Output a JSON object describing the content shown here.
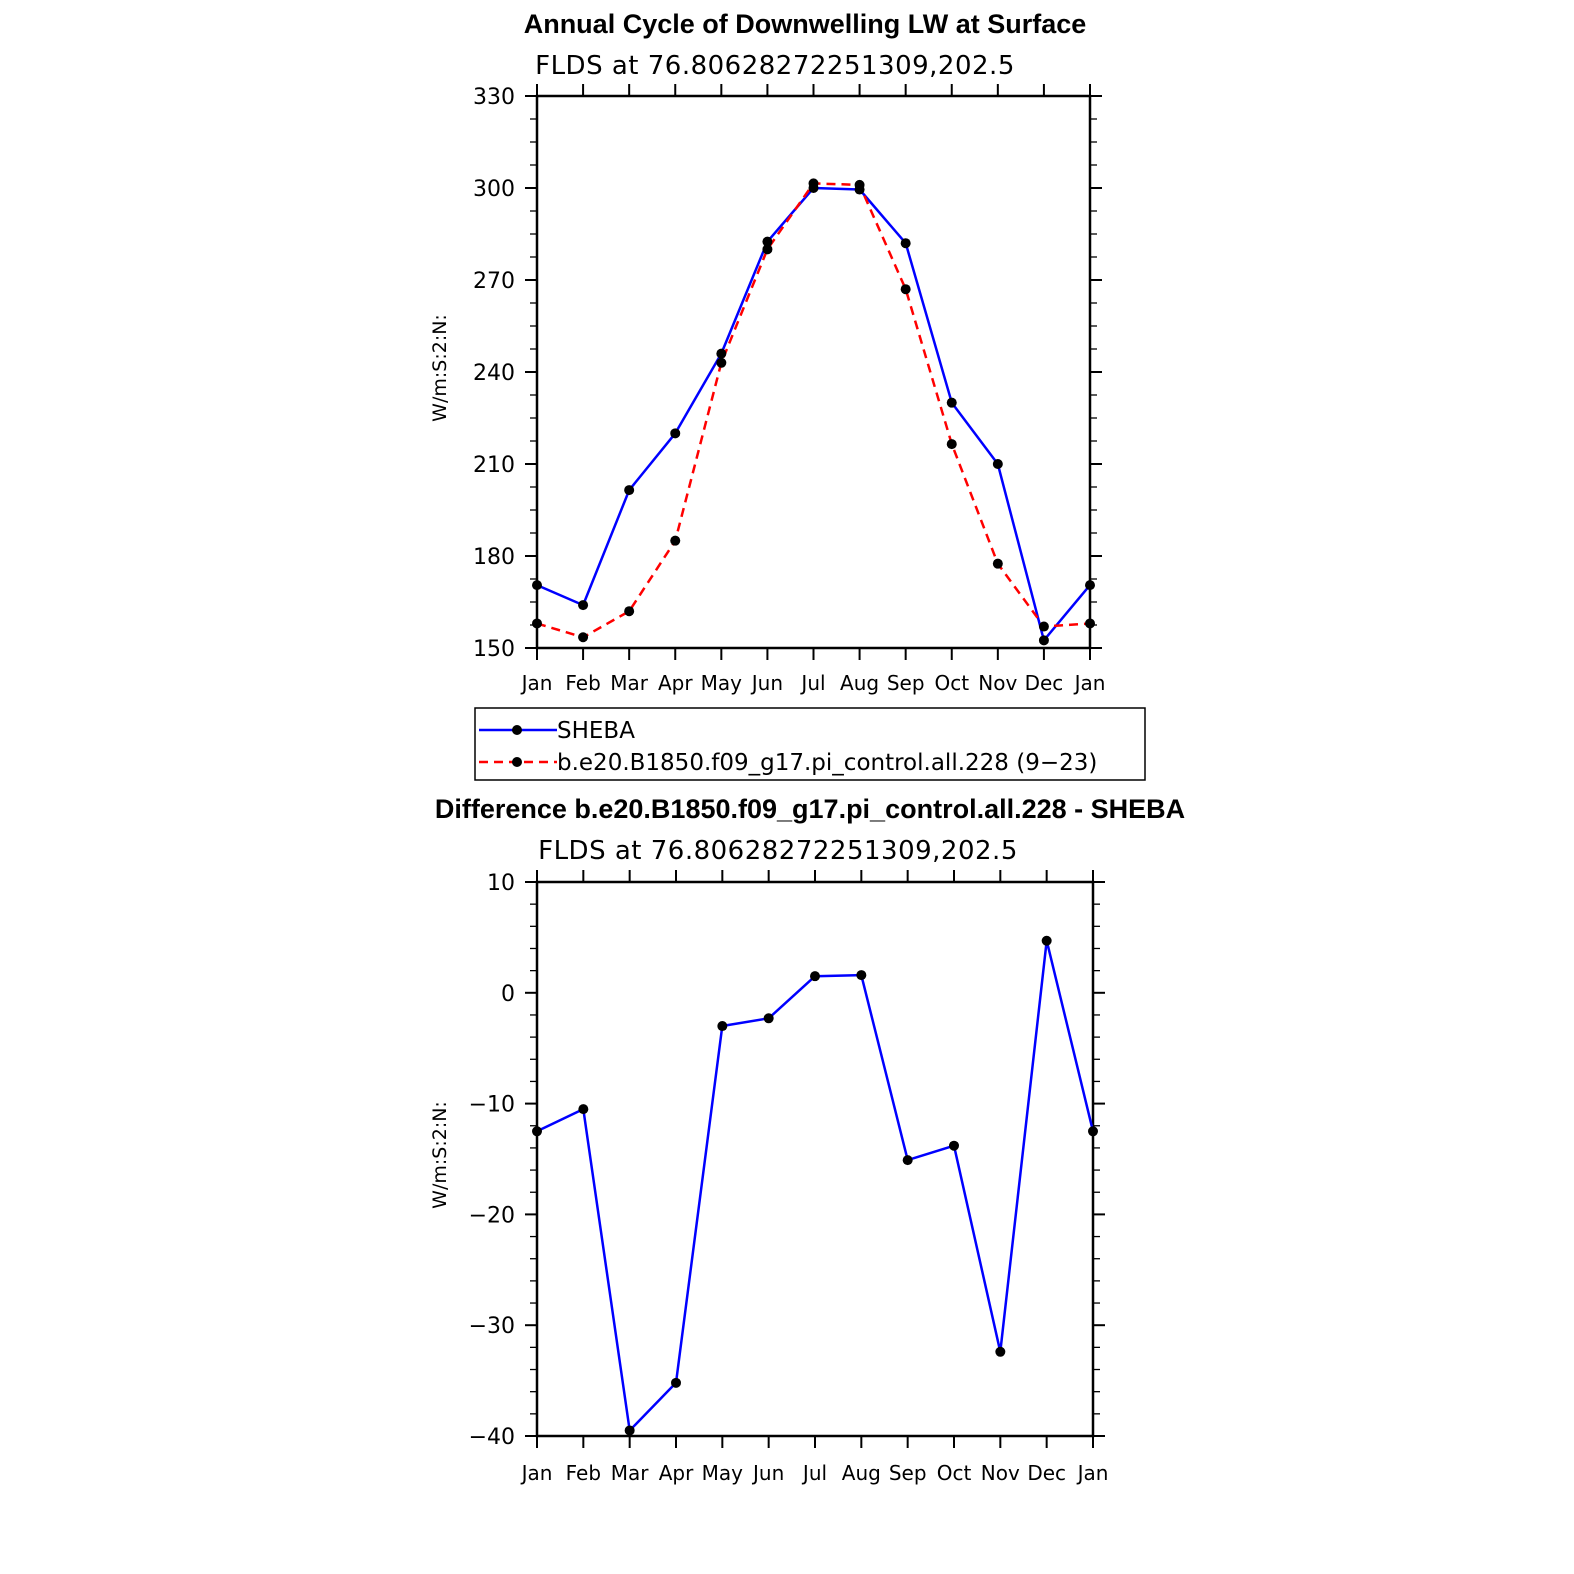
{
  "chart_data": [
    {
      "type": "line",
      "title": "Annual Cycle of Downwelling LW at Surface",
      "subtitle": "FLDS at 76.80628272251309,202.5",
      "xlabel": "",
      "ylabel": "W/m:S:2:N:",
      "categories": [
        "Jan",
        "Feb",
        "Mar",
        "Apr",
        "May",
        "Jun",
        "Jul",
        "Aug",
        "Sep",
        "Oct",
        "Nov",
        "Dec",
        "Jan"
      ],
      "ylim": [
        150,
        330
      ],
      "yticks": [
        150,
        180,
        210,
        240,
        270,
        300,
        330
      ],
      "grid": false,
      "legend_position": "below",
      "series": [
        {
          "name": "SHEBA",
          "color": "#0000ff",
          "dash": "solid",
          "values": [
            170.5,
            164,
            201.5,
            220,
            246,
            282.5,
            300,
            299.5,
            282,
            230,
            210,
            152.5,
            170.5
          ]
        },
        {
          "name": "b.e20.B1850.f09_g17.pi_control.all.228 (9−23)",
          "color": "#ff0000",
          "dash": "dashed",
          "values": [
            158,
            153.5,
            162,
            185,
            243,
            280,
            301.5,
            301,
            267,
            216.5,
            177.5,
            157,
            158
          ]
        }
      ]
    },
    {
      "type": "line",
      "title": "Difference b.e20.B1850.f09_g17.pi_control.all.228 - SHEBA",
      "subtitle": "FLDS at 76.80628272251309,202.5",
      "xlabel": "",
      "ylabel": "W/m:S:2:N:",
      "categories": [
        "Jan",
        "Feb",
        "Mar",
        "Apr",
        "May",
        "Jun",
        "Jul",
        "Aug",
        "Sep",
        "Oct",
        "Nov",
        "Dec",
        "Jan"
      ],
      "ylim": [
        -40,
        10
      ],
      "yticks": [
        -40,
        -30,
        -20,
        -10,
        0,
        10
      ],
      "ytick_labels": [
        "−40",
        "−30",
        "−20",
        "−10",
        "0",
        "10"
      ],
      "grid": false,
      "series": [
        {
          "color": "#0000ff",
          "dash": "solid",
          "values": [
            -12.5,
            -10.5,
            -39.5,
            -35.2,
            -3,
            -2.3,
            1.5,
            1.6,
            -15.1,
            -13.8,
            -32.4,
            4.7,
            -12.5
          ]
        }
      ]
    }
  ]
}
